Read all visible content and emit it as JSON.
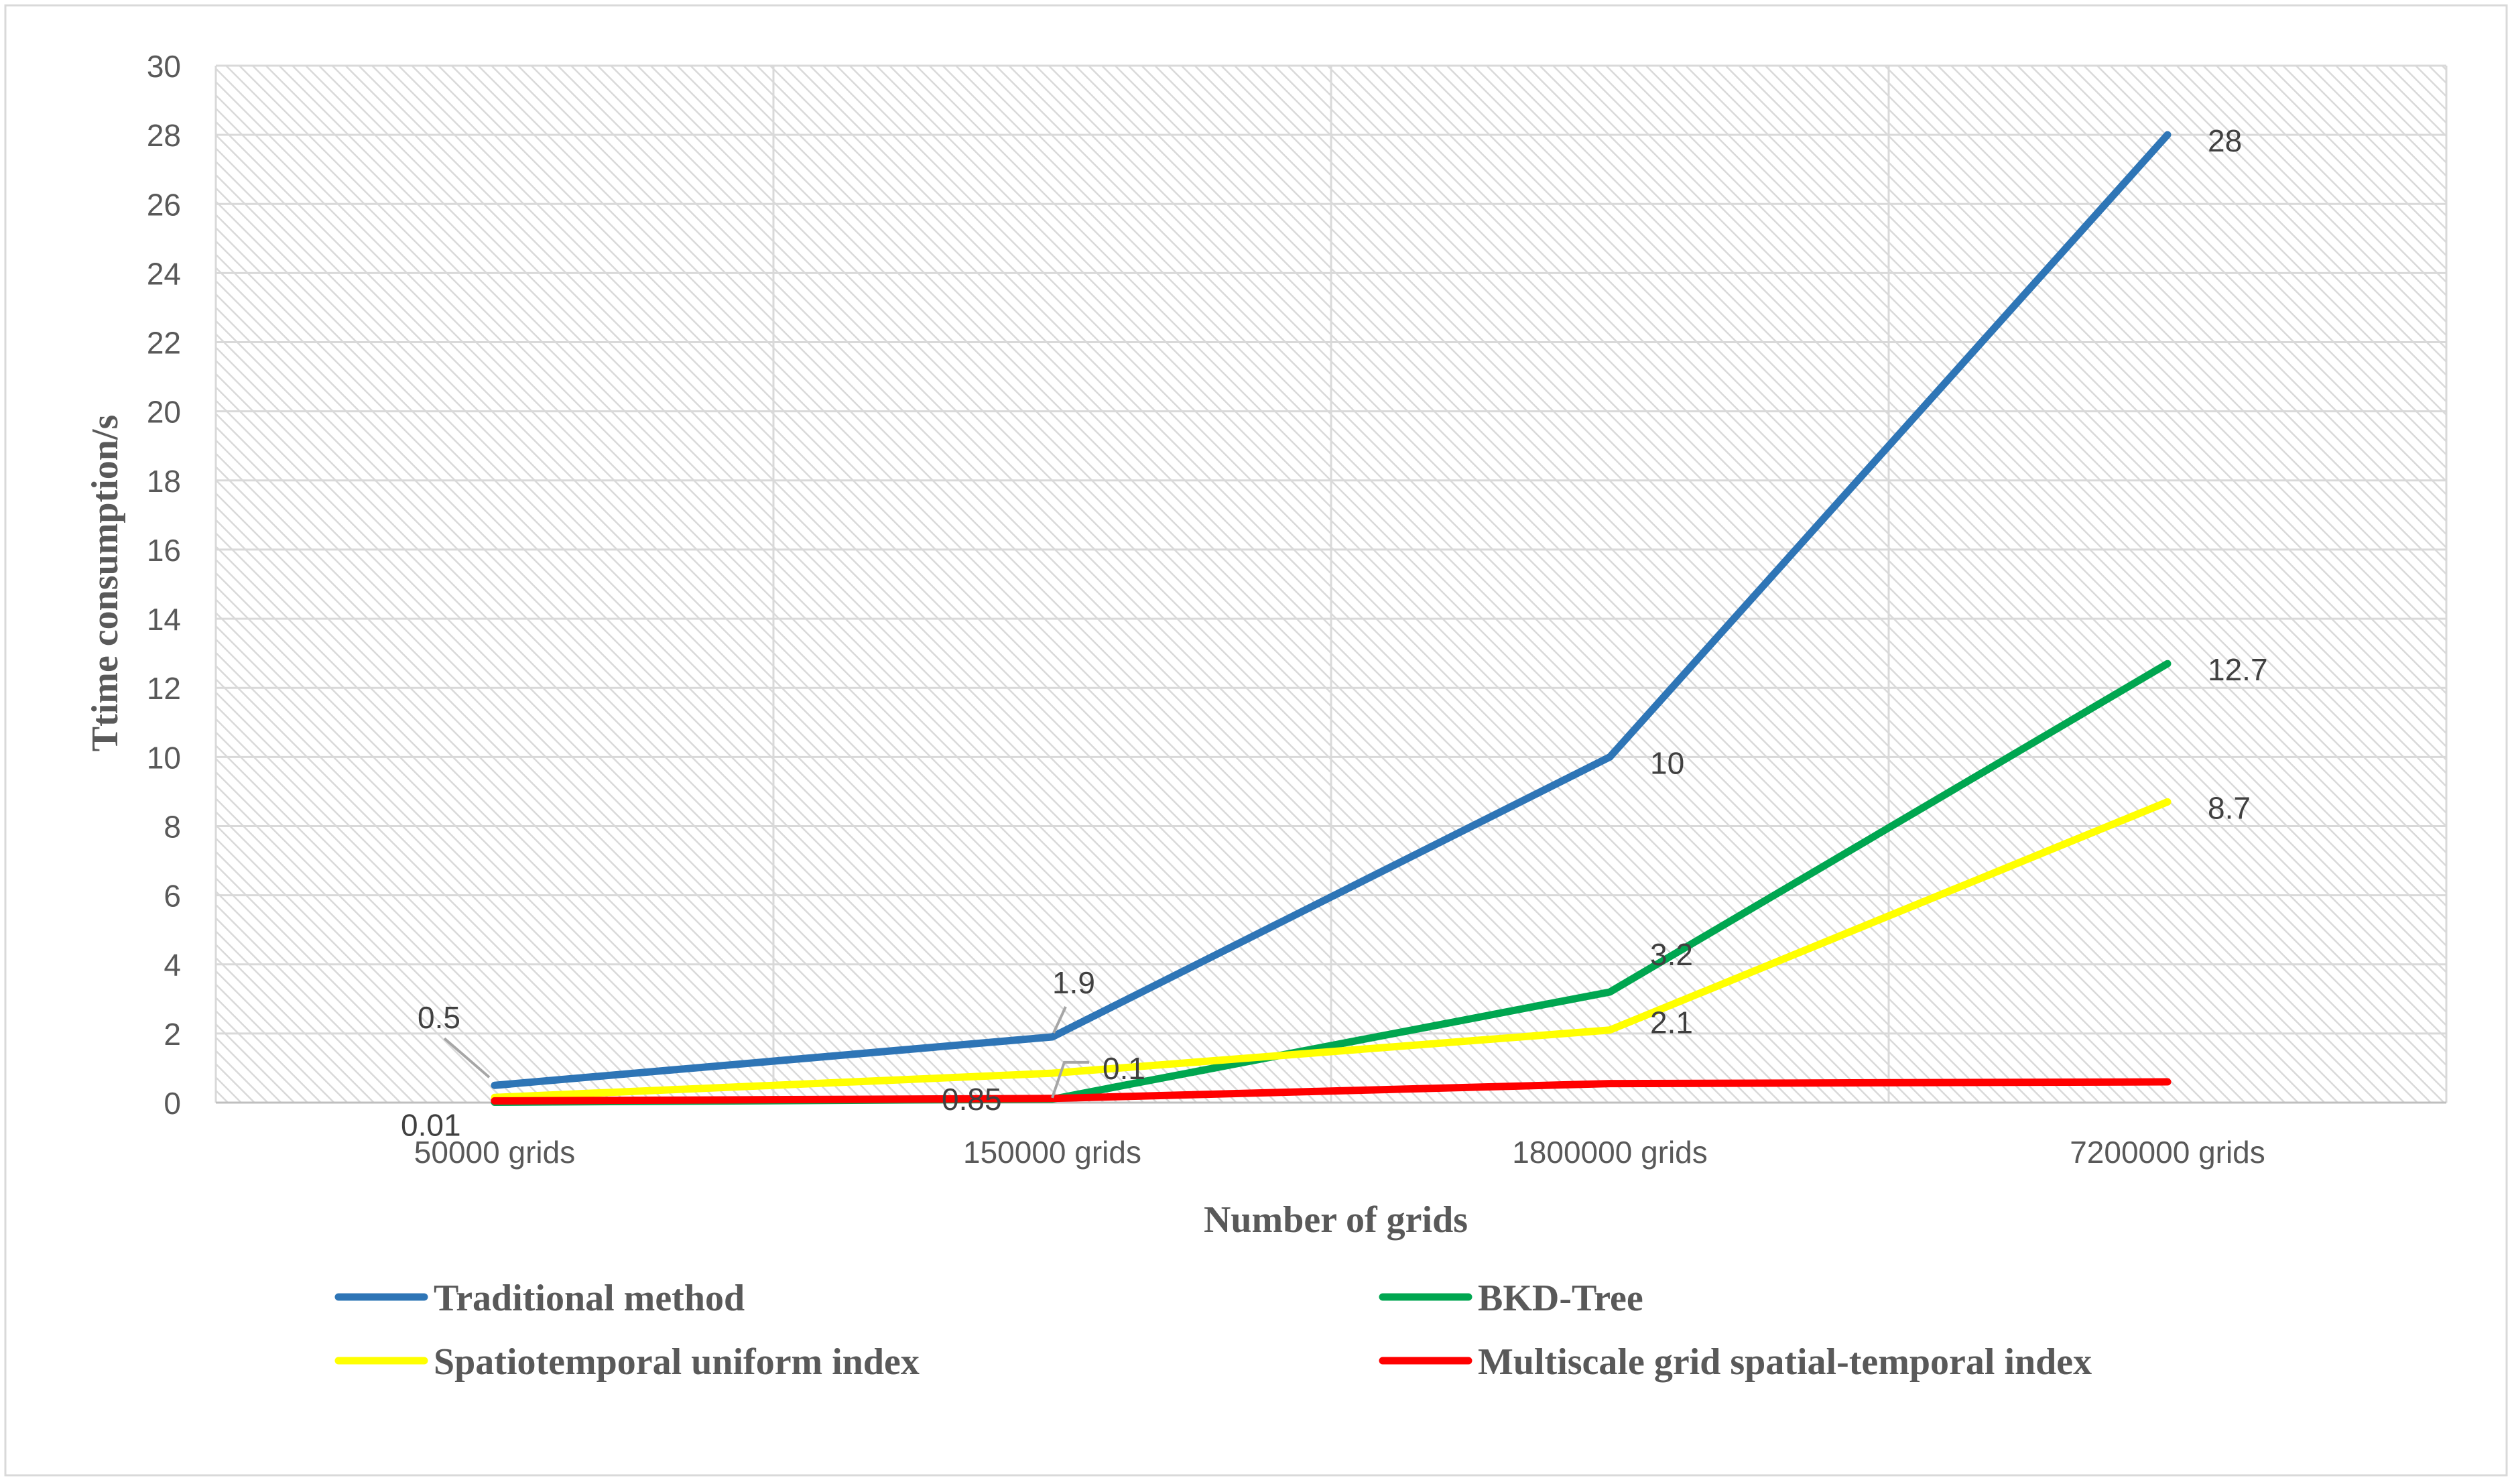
{
  "chart_data": {
    "type": "line",
    "title": "",
    "xlabel": "Number of grids",
    "ylabel": "Ttime consumption/s",
    "categories": [
      "50000 grids",
      "150000 grids",
      "1800000 grids",
      "7200000 grids"
    ],
    "ylim": [
      0,
      30
    ],
    "yticks": [
      0,
      2,
      4,
      6,
      8,
      10,
      12,
      14,
      16,
      18,
      20,
      22,
      24,
      26,
      28,
      30
    ],
    "grid": true,
    "legend_position": "bottom",
    "series": [
      {
        "name": "Traditional method",
        "color": "#2e75b6",
        "values": [
          0.5,
          1.9,
          10,
          28
        ],
        "labels": [
          "0.5",
          "1.9",
          "10",
          "28"
        ]
      },
      {
        "name": "BKD-Tree",
        "color": "#00a650",
        "values": [
          0.01,
          0.1,
          3.2,
          12.7
        ],
        "labels": [
          "0.01",
          "0.1",
          "3.2",
          "12.7"
        ]
      },
      {
        "name": "Spatiotemporal uniform index",
        "color": "#ffff00",
        "values": [
          0.15,
          0.85,
          2.1,
          8.7
        ],
        "labels": [
          "",
          "0.85",
          "2.1",
          "8.7"
        ]
      },
      {
        "name": "Multiscale grid spatial-temporal index",
        "color": "#ff0000",
        "values": [
          0.05,
          0.12,
          0.55,
          0.6
        ],
        "labels": [
          "",
          "",
          "",
          ""
        ]
      }
    ]
  }
}
